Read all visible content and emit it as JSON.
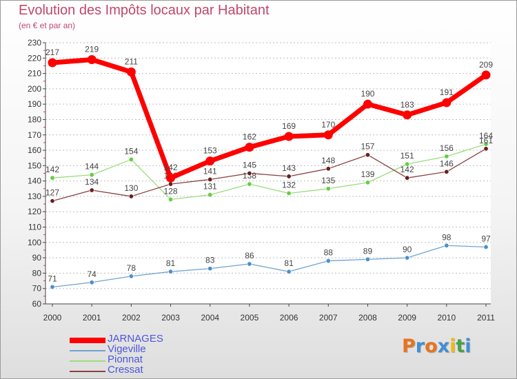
{
  "chart_data": {
    "type": "line",
    "title": "Evolution des Impôts locaux par Habitant",
    "subtitle": "(en € et par an)",
    "xlabel": "",
    "ylabel": "",
    "ylim": [
      60,
      230
    ],
    "ytick_step": 10,
    "grid": "horizontal dashed",
    "legend_position": "bottom-left",
    "categories": [
      "2000",
      "2001",
      "2002",
      "2003",
      "2004",
      "2005",
      "2006",
      "2007",
      "2008",
      "2009",
      "2010",
      "2011"
    ],
    "series": [
      {
        "name": "Vigeville",
        "color": "#6fa3cf",
        "marker": "#4a8fd0",
        "values": [
          71,
          74,
          78,
          81,
          83,
          86,
          81,
          88,
          89,
          90,
          98,
          97
        ]
      },
      {
        "name": "Pionnat",
        "color": "#99dd7a",
        "marker": "#66cc44",
        "values": [
          142,
          144,
          154,
          128,
          131,
          138,
          132,
          135,
          139,
          151,
          156,
          164
        ]
      },
      {
        "name": "Cressat",
        "color": "#8a4040",
        "marker": "#6a1f1f",
        "values": [
          127,
          134,
          130,
          138,
          141,
          145,
          143,
          148,
          157,
          142,
          146,
          161
        ]
      },
      {
        "name": "JARNAGES",
        "color": "#ff0000",
        "marker": "#ff0000",
        "values": [
          217,
          219,
          211,
          142,
          153,
          162,
          169,
          170,
          190,
          183,
          191,
          209
        ]
      }
    ],
    "legend_order": [
      "JARNAGES",
      "Vigeville",
      "Pionnat",
      "Cressat"
    ]
  },
  "logo": {
    "text": "Proxiti",
    "letter_colors": [
      "#e8731c",
      "#3f8fd6",
      "#e8731c",
      "#3f8fd6",
      "#f0b81a",
      "#4aa04a",
      "#3f8fd6"
    ]
  }
}
